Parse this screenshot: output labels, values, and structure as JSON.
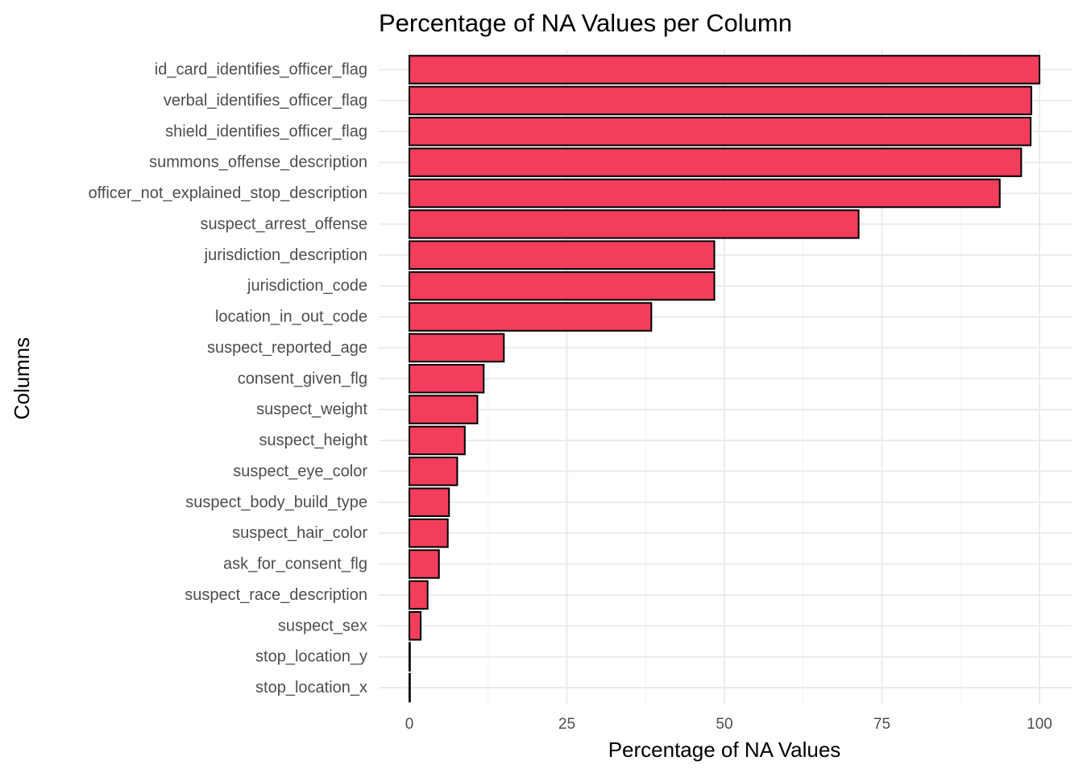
{
  "chart_data": {
    "type": "bar",
    "orientation": "horizontal",
    "title": "Percentage of NA Values per Column",
    "xlabel": "Percentage of NA Values",
    "ylabel": "Columns",
    "xlim": [
      0,
      100
    ],
    "x_ticks": [
      0,
      25,
      50,
      75,
      100
    ],
    "grid": true,
    "bar_color": "#F23D5C",
    "bar_outline": "#000000",
    "categories": [
      "id_card_identifies_officer_flag",
      "verbal_identifies_officer_flag",
      "shield_identifies_officer_flag",
      "summons_offense_description",
      "officer_not_explained_stop_description",
      "suspect_arrest_offense",
      "jurisdiction_description",
      "jurisdiction_code",
      "location_in_out_code",
      "suspect_reported_age",
      "consent_given_flg",
      "suspect_weight",
      "suspect_height",
      "suspect_eye_color",
      "suspect_body_build_type",
      "suspect_hair_color",
      "ask_for_consent_flg",
      "suspect_race_description",
      "suspect_sex",
      "stop_location_y",
      "stop_location_x"
    ],
    "values": [
      100,
      98.7,
      98.6,
      97.1,
      93.7,
      71.3,
      48.4,
      48.4,
      38.4,
      15.0,
      11.8,
      10.8,
      8.8,
      7.6,
      6.3,
      6.1,
      4.7,
      2.9,
      1.8,
      0.1,
      0.1
    ]
  }
}
